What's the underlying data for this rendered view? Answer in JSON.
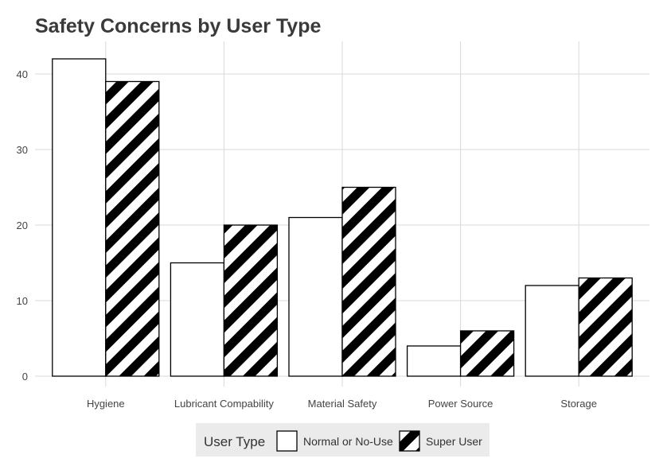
{
  "chart_data": {
    "type": "bar",
    "title": "Safety Concerns by User Type",
    "xlabel": "",
    "ylabel": "",
    "categories": [
      "Hygiene",
      "Lubricant Compability",
      "Material Safety",
      "Power Source",
      "Storage"
    ],
    "series": [
      {
        "name": "Normal or No-Use",
        "values": [
          42,
          15,
          21,
          4,
          12
        ],
        "fill": "#ffffff",
        "pattern": "none"
      },
      {
        "name": "Super User",
        "values": [
          39,
          20,
          25,
          6,
          13
        ],
        "fill": "#ffffff",
        "pattern": "diagonal-stripes"
      }
    ],
    "ylim": [
      0,
      44
    ],
    "yticks": [
      0,
      10,
      20,
      30,
      40
    ],
    "grid": true,
    "legend": {
      "title": "User Type",
      "position": "bottom"
    },
    "colors": {
      "stroke": "#000000",
      "stripe": "#000000",
      "grid": "#d9d9d9",
      "legend_background": "#ebebeb"
    }
  }
}
